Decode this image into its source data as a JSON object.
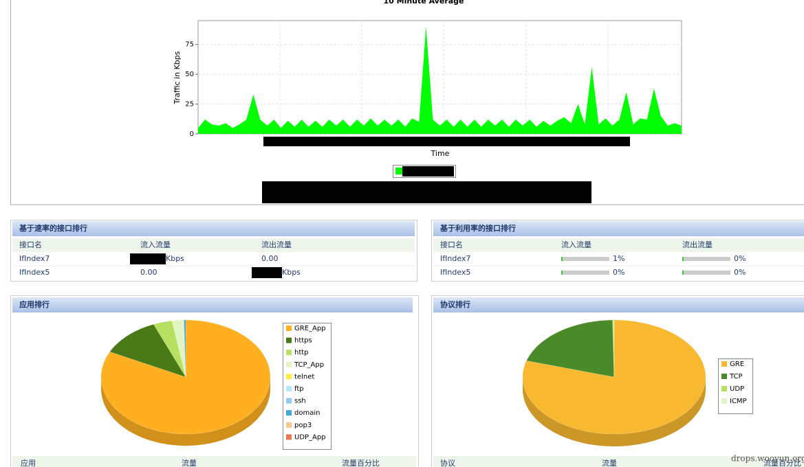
{
  "traffic_chart": {
    "type": "area",
    "title": "10 Minute Average",
    "y_label": "Traffic in Kbps",
    "x_label": "Time",
    "color": "#00ff00",
    "values": [
      5,
      12,
      8,
      7,
      9,
      5,
      8,
      12,
      33,
      12,
      7,
      12,
      5,
      11,
      6,
      12,
      6,
      11,
      6,
      12,
      7,
      12,
      6,
      12,
      7,
      13,
      7,
      12,
      7,
      12,
      6,
      13,
      10,
      90,
      12,
      7,
      12,
      6,
      12,
      6,
      12,
      6,
      12,
      7,
      12,
      6,
      12,
      7,
      12,
      6,
      11,
      7,
      11,
      14,
      9,
      25,
      8,
      56,
      8,
      13,
      7,
      12,
      35,
      8,
      13,
      12,
      38,
      15,
      7,
      9,
      7
    ],
    "ylim": [
      0,
      95
    ],
    "yticks": [
      0,
      25,
      50,
      75
    ],
    "grid": true
  },
  "rate_ranking": {
    "title": "基于速率的接口排行",
    "headers": [
      "接口名",
      "流入流量",
      "流出流量"
    ],
    "rows": [
      [
        "IfIndex7",
        "Kbps",
        "0.00"
      ],
      [
        "IfIndex5",
        "0.00",
        "Kbps"
      ]
    ]
  },
  "util_ranking": {
    "title": "基于利用率的接口排行",
    "headers": [
      "接口名",
      "流入流量",
      "流出流量"
    ],
    "rows": [
      [
        "IfIndex7",
        "1%",
        "0%"
      ],
      [
        "IfIndex5",
        "0%",
        "0%"
      ]
    ]
  },
  "app_ranking": {
    "title": "应用排行",
    "headers": [
      "应用",
      "流量",
      "流量百分比"
    ],
    "chart": {
      "type": "pie",
      "categories": [
        "GRE_App",
        "https",
        "http",
        "TCP_App",
        "telnet",
        "ftp",
        "ssh",
        "domain",
        "pop3",
        "UDP_App"
      ],
      "values": [
        82.3,
        11.5,
        3.6,
        2.0,
        0.1,
        0.1,
        0.1,
        0.3,
        0,
        0
      ],
      "colors": [
        "#ffb020",
        "#4a7a18",
        "#b8e060",
        "#e0f5c0",
        "#ffee40",
        "#b8e8f8",
        "#90c8f0",
        "#40a8d8",
        "#f8c890",
        "#e87850"
      ]
    }
  },
  "protocol_ranking": {
    "title": "协议排行",
    "headers": [
      "协议",
      "流量",
      "流量百分比"
    ],
    "chart": {
      "type": "pie",
      "categories": [
        "GRE",
        "TCP",
        "UDP",
        "ICMP"
      ],
      "values": [
        79.6,
        20.1,
        0.2,
        0.1
      ],
      "colors": [
        "#f8b830",
        "#4a8a28",
        "#b8e060",
        "#e0f5c0"
      ]
    }
  },
  "watermark": "drops.wooyun.org"
}
